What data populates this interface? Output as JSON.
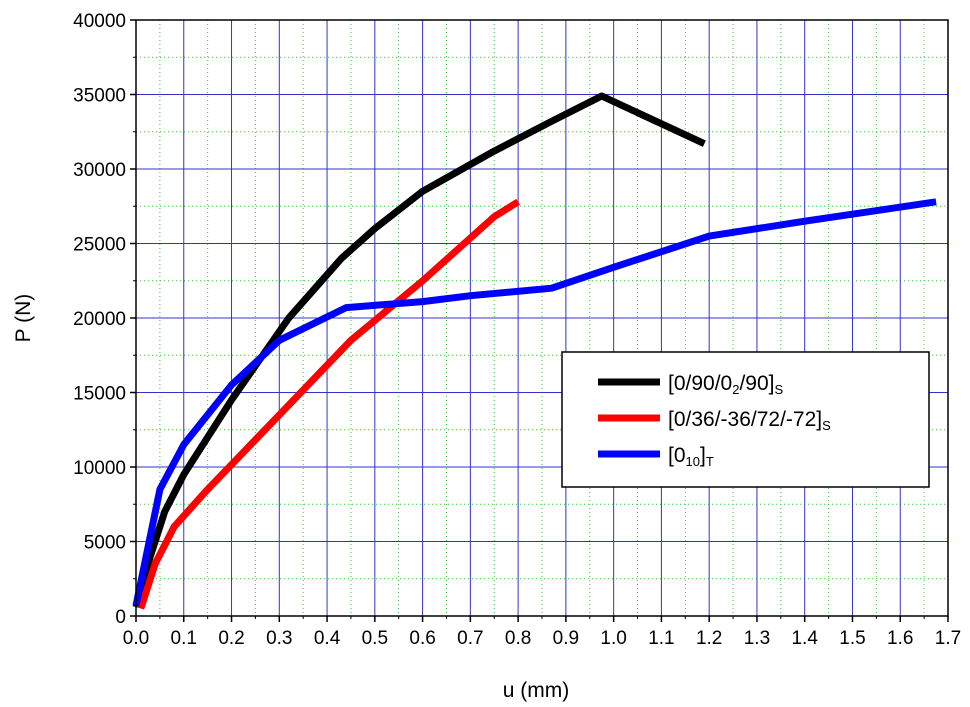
{
  "chart_data": {
    "type": "line",
    "xlabel": "u (mm)",
    "ylabel": "P (N)",
    "xlim": [
      0,
      1.7
    ],
    "ylim": [
      0,
      40000
    ],
    "x_ticks": [
      "0.0",
      "0.1",
      "0.2",
      "0.3",
      "0.4",
      "0.5",
      "0.6",
      "0.7",
      "0.8",
      "0.9",
      "1.0",
      "1.1",
      "1.2",
      "1.3",
      "1.4",
      "1.5",
      "1.6",
      "1.7"
    ],
    "y_ticks": [
      "0",
      "5000",
      "10000",
      "15000",
      "20000",
      "25000",
      "30000",
      "35000",
      "40000"
    ],
    "grid": true,
    "legend_position": "center-right",
    "series": [
      {
        "legend_main": "[0/90/0",
        "legend_parts": [
          {
            "text": "[0/90/0",
            "sub": false
          },
          {
            "text": "2",
            "sub": true
          },
          {
            "text": "/90]",
            "sub": false
          },
          {
            "text": "S",
            "sub": true
          }
        ],
        "color": "#000000",
        "points": [
          [
            0.0,
            600
          ],
          [
            0.03,
            4000
          ],
          [
            0.06,
            7000
          ],
          [
            0.1,
            9500
          ],
          [
            0.2,
            14500
          ],
          [
            0.32,
            20000
          ],
          [
            0.43,
            24000
          ],
          [
            0.5,
            26000
          ],
          [
            0.6,
            28500
          ],
          [
            0.75,
            31200
          ],
          [
            0.87,
            33200
          ],
          [
            0.975,
            34900
          ],
          [
            1.19,
            31700
          ]
        ]
      },
      {
        "legend_main": "[0/36/-36/72/-72]",
        "legend_parts": [
          {
            "text": "[0/36/-36/72/-72]",
            "sub": false
          },
          {
            "text": "S",
            "sub": true
          }
        ],
        "color": "#ff0000",
        "points": [
          [
            0.01,
            500
          ],
          [
            0.04,
            3500
          ],
          [
            0.08,
            6000
          ],
          [
            0.15,
            8500
          ],
          [
            0.3,
            13500
          ],
          [
            0.45,
            18500
          ],
          [
            0.6,
            22500
          ],
          [
            0.75,
            26800
          ],
          [
            0.8,
            27800
          ]
        ]
      },
      {
        "legend_main": "[0",
        "legend_parts": [
          {
            "text": "[0",
            "sub": false
          },
          {
            "text": "10",
            "sub": true
          },
          {
            "text": "]",
            "sub": false
          },
          {
            "text": "T",
            "sub": true
          }
        ],
        "color": "#0000ff",
        "points": [
          [
            0.0,
            700
          ],
          [
            0.05,
            8500
          ],
          [
            0.1,
            11500
          ],
          [
            0.2,
            15500
          ],
          [
            0.3,
            18500
          ],
          [
            0.44,
            20700
          ],
          [
            0.6,
            21100
          ],
          [
            0.7,
            21500
          ],
          [
            0.87,
            22000
          ],
          [
            1.0,
            23400
          ],
          [
            1.2,
            25500
          ],
          [
            1.4,
            26500
          ],
          [
            1.675,
            27800
          ]
        ]
      }
    ]
  }
}
